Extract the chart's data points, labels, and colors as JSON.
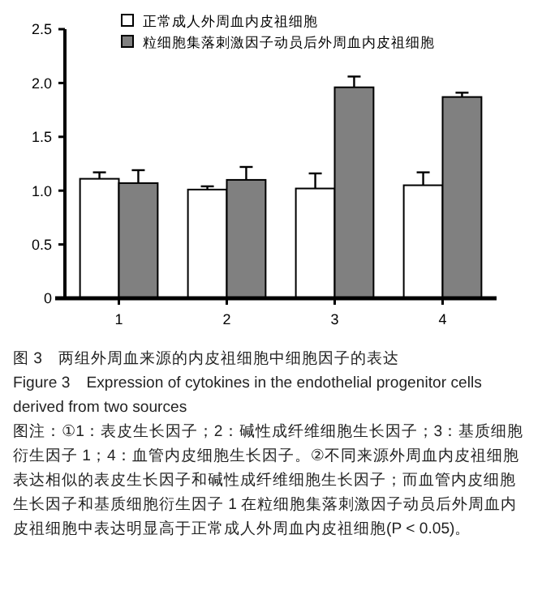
{
  "chart_data": {
    "type": "bar",
    "categories": [
      "1",
      "2",
      "3",
      "4"
    ],
    "series": [
      {
        "name": "正常成人外周血内皮祖细胞",
        "color": "#ffffff",
        "values": [
          1.11,
          1.01,
          1.02,
          1.05
        ],
        "errors": [
          [
            1.11,
            1.17
          ],
          [
            1.01,
            1.04
          ],
          [
            1.02,
            1.16
          ],
          [
            1.05,
            1.17
          ]
        ]
      },
      {
        "name": "粒细胞集落刺激因子动员后外周血内皮祖细胞",
        "color": "#808080",
        "values": [
          1.07,
          1.1,
          1.96,
          1.87
        ],
        "errors": [
          [
            1.07,
            1.19
          ],
          [
            1.1,
            1.22
          ],
          [
            1.96,
            2.06
          ],
          [
            1.87,
            1.91
          ]
        ]
      }
    ],
    "ylim": [
      0,
      2.5
    ],
    "yticks": [
      0,
      0.5,
      {
        "value": 1,
        "label": "1.0"
      },
      1.5,
      {
        "value": 2,
        "label": "2.0"
      },
      2.5
    ],
    "grid": false,
    "legend": "top",
    "annotations": [
      "图 3　两组外周血来源的内皮祖细胞中细胞因子的表达",
      "Figure 3　Expression of cytokines in the endothelial progenitor cells derived from two sources",
      "图注：①1：表皮生长因子；2：碱性成纤维细胞生长因子；3：基质细胞衍生因子 1；4：血管内皮细胞生长因子。②不同来源外周血内皮祖细胞表达相似的表皮生长因子和碱性成纤维细胞生长因子；而血管内皮细胞生长因子和基质细胞衍生因子 1 在粒细胞集落刺激因子动员后外周血内皮祖细胞中表达明显高于正常成人外周血内皮祖细胞(P < 0.05)。"
    ]
  }
}
